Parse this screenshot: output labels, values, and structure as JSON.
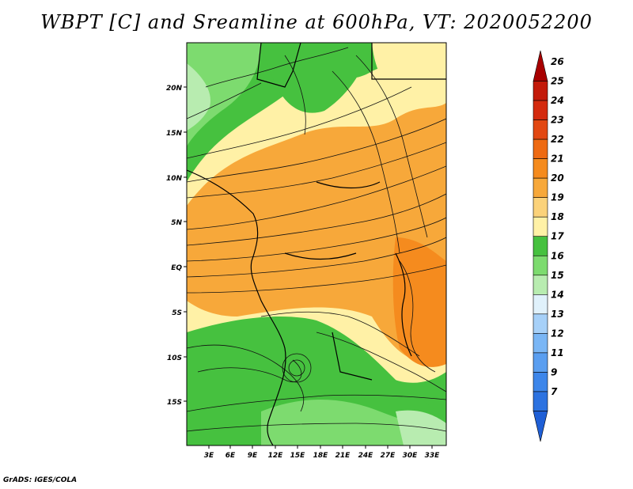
{
  "title": "WBPT [C] and Sreamline at 600hPa, VT: 2020052200",
  "credit": "GrADS: IGES/COLA",
  "map": {
    "lat_labels": [
      "20N",
      "15N",
      "10N",
      "5N",
      "EQ",
      "5S",
      "10S",
      "15S"
    ],
    "lon_labels": [
      "3E",
      "6E",
      "9E",
      "12E",
      "15E",
      "18E",
      "21E",
      "24E",
      "27E",
      "30E",
      "33E"
    ]
  },
  "colorbar": {
    "levels": [
      "7",
      "9",
      "11",
      "12",
      "13",
      "14",
      "15",
      "16",
      "17",
      "18",
      "19",
      "20",
      "21",
      "22",
      "23",
      "24",
      "25",
      "26"
    ],
    "colors": [
      "#1f5fd6",
      "#2c72e0",
      "#3d86ea",
      "#5a9ef0",
      "#7ab6f5",
      "#a6d0f8",
      "#e0f1fb",
      "#b8ecb0",
      "#7ddb6f",
      "#46c13f",
      "#fff1a6",
      "#fbd27a",
      "#f7a83a",
      "#f58b1e",
      "#ee6a12",
      "#e24812",
      "#d42a0e",
      "#c31a0a",
      "#a80000"
    ]
  }
}
